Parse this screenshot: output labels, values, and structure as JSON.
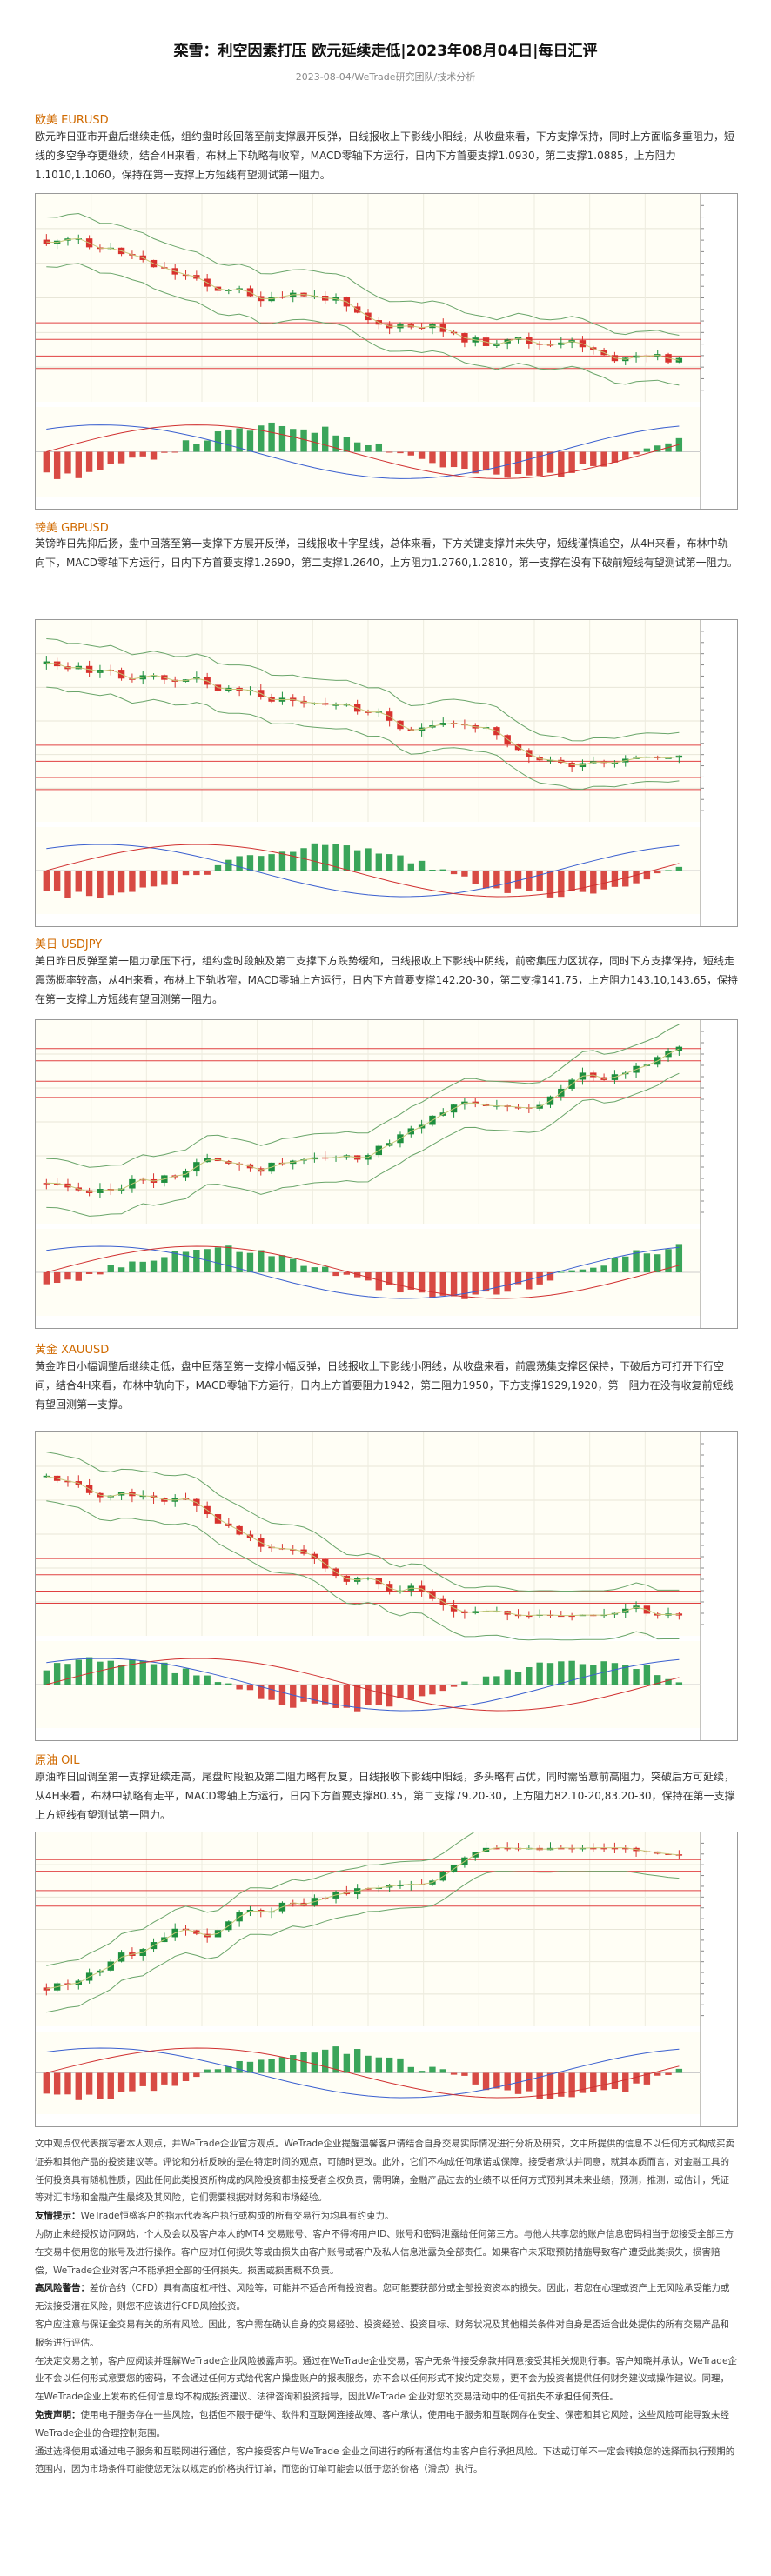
{
  "header": {
    "title": "栾雪：利空因素打压 欧元延续走低|2023年08月04日|每日汇评",
    "meta": "2023-08-04/WeTrade研究团队/技术分析"
  },
  "sections": [
    {
      "title": "欧美 EURUSD",
      "paragraph": "欧元昨日亚市开盘后继续走低，组约盘时段回落至前支撑展开反弹，日线报收上下影线小阳线，从收盘来看，下方支撑保持，同时上方面临多重阻力，短线的多空争夺更继续，结合4H来看，布林上下轨略有收窄，MACD零轴下方运行，日内下方首要支撑1.0930，第二支撑1.0885，上方阻力1.1010,1.1060，保持在第一支撑上方短线有望测试第一阻力。"
    },
    {
      "title": "镑美 GBPUSD",
      "paragraph": "英镑昨日先抑后扬，盘中回落至第一支撑下方展开反弹，日线报收十字星线，总体来看，下方关键支撑并未失守，短线谨慎追空，从4H来看，布林中轨向下，MACD零轴下方运行，日内下方首要支撑1.2690，第二支撑1.2640，上方阻力1.2760,1.2810，第一支撑在没有下破前短线有望测试第一阻力。"
    },
    {
      "title": "美日 USDJPY",
      "paragraph": "美日昨日反弹至第一阻力承压下行，组约盘时段触及第二支撑下方跌势缓和，日线报收上下影线中阴线，前密集压力区犹存，同时下方支撑保持，短线走震荡概率较高，从4H来看，布林上下轨收窄，MACD零轴上方运行，日内下方首要支撑142.20-30，第二支撑141.75，上方阻力143.10,143.65，保持在第一支撑上方短线有望回测第一阻力。"
    },
    {
      "title": "黄金 XAUUSD",
      "paragraph": "黄金昨日小幅调整后继续走低，盘中回落至第一支撑小幅反弹，日线报收上下影线小阴线，从收盘来看，前震荡集支撑区保持，下破后方可打开下行空间，结合4H来看，布林中轨向下，MACD零轴下方运行，日内上方首要阻力1942，第二阻力1950，下方支撑1929,1920，第一阻力在没有收复前短线有望回测第一支撑。"
    },
    {
      "title": "原油 OIL",
      "paragraph": "原油昨日回调至第一支撑延续走高，尾盘时段触及第二阻力略有反复，日线报收下影线中阳线，多头略有占优，同时需留意前高阻力，突破后方可延续，从4H来看，布林中轨略有走平，MACD零轴上方运行，日内下方首要支撑80.35，第二支撑79.20-30，上方阻力82.10-20,83.20-30，保持在第一支撑上方短线有望测试第一阻力。"
    }
  ],
  "disclaimer": [
    {
      "lead": "",
      "text": "文中观点仅代表撰写者本人观点，并WeTrade企业官方观点。WeTrade企业提醒温馨客户请结合自身交易实际情况进行分析及研究，文中所提供的信息不以任何方式构成买卖证券和其他产品的投资建议等。评论和分析反映的是在特定时间的观点，可随时更改。此外，它们不构成任何承诺或保障。接受者承认并同意，就其本质而言，对金融工具的任何投资具有随机性质，因此任何此类投资所构成的风险投资都由接受者全权负责，需明确，金融产品过去的业绩不以任何方式预判其未来业绩，预测，推测，或估计，凭证等对汇市场和金融产生最终及其风险，它们需要根据对财务和市场经验。"
    },
    {
      "lead": "友情提示：",
      "text": "WeTrade恒盛客户的指示代表客户执行或构成的所有交易行为均具有约束力。"
    },
    {
      "lead": "",
      "text": "为防止未经授权访问网站，个人及会以及客户本人的MT4 交易账号、客户不得将用户ID、账号和密码泄露给任何第三方。与他人共享您的账户信息密码相当于您接受全部三方在交易中使用您的账号及进行操作。客户应对任何损失等或由损失由客户账号或客户及私人信息泄露负全部责任。如果客户未采取预防措施导致客户遭受此类损失，损害赔偿，WeTrade企业对客户不能承担全部的任何损失。损害或损害概不负责。"
    },
    {
      "lead": "高风险警告：",
      "text": "差价合约（CFD）具有高度杠杆性、风险等，可能并不适合所有投资者。您可能要获部分或全部投资资本的损失。因此，若您在心理或资产上无风险承受能力或无法接受潜在风险，则您不应该进行CFD风险投资。"
    },
    {
      "lead": "",
      "text": "客户应注意与保证金交易有关的所有风险。因此，客户需在确认自身的交易经验、投资经验、投资目标、财务状况及其他相关条件对自身是否适合此处提供的所有交易产品和服务进行评估。"
    },
    {
      "lead": "",
      "text": "在决定交易之前，客户应阅读并理解WeTrade企业风险披露声明。通过在WeTrade企业交易，客户无条件接受条款并同意接受其相关规则行事。客户知晓并承认，WeTrade企业不会以任何形式意要您的密码，不会通过任何方式给代客户操盘账户的报表服务，亦不会以任何形式不按约定交易，更不会为投资者提供任何财务建议或操作建议。同理，在WeTrade企业上发布的任何信息均不构成投资建议、法律咨询和投资指导，因此WeTrade 企业对您的交易活动中的任何损失不承担任何责任。"
    },
    {
      "lead": "免责声明：",
      "text": "使用电子服务存在一些风险，包括但不限于硬件、软件和互联网连接故障、客户承认，使用电子服务和互联网存在安全、保密和其它风险，这些风险可能导致未经WeTrade企业的合理控制范围。"
    },
    {
      "lead": "",
      "text": "通过选择使用或通过电子服务和互联网进行通信，客户接受客户与WeTrade 企业之间进行的所有通信均由客户自行承担风险。下达或订单不一定会转换您的选择而执行预期的范围内，因为市场条件可能使您无法以规定的价格执行订单，而您的订单可能会以低于您的价格（滑点）执行。"
    }
  ]
}
